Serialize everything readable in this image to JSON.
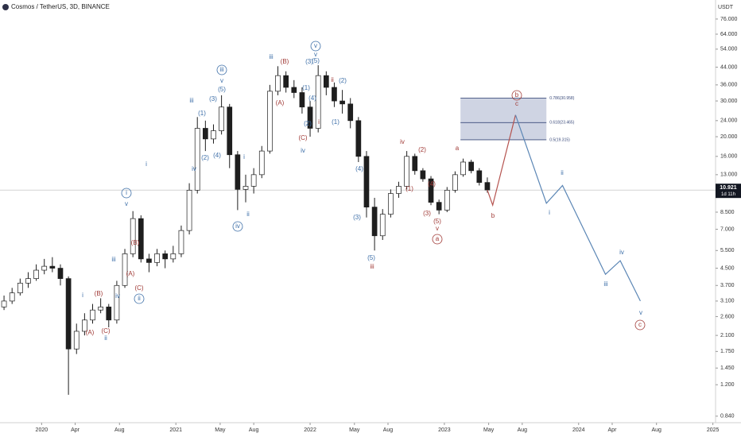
{
  "header": {
    "symbol": "Cosmos / TetherUS, 3D, BINANCE",
    "currency": "USDT",
    "countdown": "1d 11h"
  },
  "chart_data": {
    "type": "candlestick",
    "log": true,
    "up_color": "#ffffff",
    "down_color": "#1e1e1e",
    "outline": "#1e1e1e",
    "ylim": [
      0.78,
      94.3
    ],
    "xlim": [
      2019.69,
      2025.02
    ],
    "yticks": [
      {
        "value": 76,
        "label": "76.000"
      },
      {
        "value": 64,
        "label": "64.000"
      },
      {
        "value": 54,
        "label": "54.000"
      },
      {
        "value": 44,
        "label": "44.000"
      },
      {
        "value": 36,
        "label": "36.000"
      },
      {
        "value": 30,
        "label": "30.000"
      },
      {
        "value": 24,
        "label": "24.000"
      },
      {
        "value": 20,
        "label": "20.000"
      },
      {
        "value": 16,
        "label": "16.000"
      },
      {
        "value": 13,
        "label": "13.000"
      },
      {
        "value": 8.5,
        "label": "8.500"
      },
      {
        "value": 7,
        "label": "7.000"
      },
      {
        "value": 5.5,
        "label": "5.500"
      },
      {
        "value": 4.5,
        "label": "4.500"
      },
      {
        "value": 3.7,
        "label": "3.700"
      },
      {
        "value": 3.1,
        "label": "3.100"
      },
      {
        "value": 2.6,
        "label": "2.600"
      },
      {
        "value": 2.1,
        "label": "2.100"
      },
      {
        "value": 1.75,
        "label": "1.750"
      },
      {
        "value": 1.45,
        "label": "1.450"
      },
      {
        "value": 1.2,
        "label": "1.200"
      },
      {
        "value": 0.84,
        "label": "0.840"
      }
    ],
    "xticks": [
      2020,
      {
        "value": 2020.25,
        "label": "Apr"
      },
      {
        "value": 2020.58,
        "label": "Aug"
      },
      2021,
      {
        "value": 2021.33,
        "label": "May"
      },
      {
        "value": 2021.58,
        "label": "Aug"
      },
      2022,
      {
        "value": 2022.33,
        "label": "May"
      },
      {
        "value": 2022.58,
        "label": "Aug"
      },
      2023,
      {
        "value": 2023.33,
        "label": "May"
      },
      {
        "value": 2023.58,
        "label": "Aug"
      },
      2024,
      {
        "value": 2024.25,
        "label": "Apr"
      },
      {
        "value": 2024.58,
        "label": "Aug"
      },
      2025
    ],
    "x": [
      2019.72,
      2019.78,
      2019.84,
      2019.9,
      2019.96,
      2020.02,
      2020.08,
      2020.14,
      2020.2,
      2020.26,
      2020.32,
      2020.38,
      2020.44,
      2020.5,
      2020.56,
      2020.62,
      2020.68,
      2020.74,
      2020.8,
      2020.86,
      2020.92,
      2020.98,
      2021.04,
      2021.1,
      2021.16,
      2021.22,
      2021.28,
      2021.34,
      2021.4,
      2021.46,
      2021.52,
      2021.58,
      2021.64,
      2021.7,
      2021.76,
      2021.82,
      2021.88,
      2021.94,
      2022.0,
      2022.06,
      2022.12,
      2022.18,
      2022.24,
      2022.3,
      2022.36,
      2022.42,
      2022.48,
      2022.54,
      2022.6,
      2022.66,
      2022.72,
      2022.78,
      2022.84,
      2022.9,
      2022.96,
      2023.02,
      2023.08,
      2023.14,
      2023.2,
      2023.26,
      2023.32
    ],
    "open": [
      2.9,
      3.1,
      3.4,
      3.8,
      4.0,
      4.4,
      4.6,
      4.5,
      4.0,
      1.8,
      2.2,
      2.5,
      2.8,
      2.9,
      2.5,
      3.7,
      5.3,
      7.9,
      5.0,
      4.8,
      5.3,
      5.0,
      5.3,
      6.9,
      10.9,
      22,
      19.5,
      21.4,
      28,
      16.3,
      11,
      11.4,
      13,
      17,
      33.5,
      40,
      35,
      33,
      28,
      22,
      40,
      35,
      30,
      29,
      24,
      16,
      9,
      6.5,
      8.3,
      10.5,
      11.4,
      16,
      13.6,
      12.4,
      9.5,
      8.7,
      10.9,
      13,
      15,
      13.6,
      11.9
    ],
    "high": [
      3.3,
      3.6,
      4.0,
      4.3,
      4.7,
      5.0,
      5.1,
      4.7,
      4.1,
      2.4,
      2.7,
      3.0,
      3.2,
      3.0,
      3.9,
      5.6,
      8.6,
      8.2,
      5.3,
      5.6,
      5.5,
      5.8,
      7.3,
      11.8,
      25,
      24,
      23,
      32,
      29,
      17,
      13,
      14,
      18,
      36,
      44.5,
      42,
      38,
      35,
      30,
      45,
      42,
      37,
      34,
      31,
      25,
      17,
      10,
      8.8,
      11,
      12,
      17,
      16.5,
      14,
      12.8,
      9.8,
      11.3,
      13.5,
      15.6,
      15.4,
      14,
      12.6
    ],
    "low": [
      2.8,
      3.0,
      3.3,
      3.6,
      3.9,
      4.2,
      4.3,
      3.7,
      1.07,
      1.7,
      2.1,
      2.4,
      2.7,
      2.3,
      2.4,
      3.6,
      5.1,
      4.8,
      4.3,
      4.6,
      4.5,
      4.8,
      5.1,
      6.6,
      10.5,
      17,
      18.5,
      20.5,
      14,
      8.7,
      9.5,
      10.5,
      12.5,
      16.5,
      32,
      33,
      31,
      26,
      20,
      21,
      32,
      28,
      26,
      22,
      15,
      8,
      5.5,
      6.2,
      8,
      10,
      11,
      13,
      12,
      9.2,
      8.3,
      8.5,
      10.6,
      12.7,
      13.2,
      11.5,
      10.6
    ],
    "close": [
      3.1,
      3.4,
      3.8,
      4.0,
      4.4,
      4.6,
      4.5,
      4.0,
      1.8,
      2.2,
      2.5,
      2.8,
      2.9,
      2.5,
      3.7,
      5.3,
      7.9,
      5.0,
      4.8,
      5.3,
      5.0,
      5.3,
      6.9,
      10.9,
      22,
      19.5,
      21.4,
      28,
      16.3,
      11,
      11.4,
      13,
      17,
      33.5,
      40,
      35,
      33,
      28,
      22,
      40,
      35,
      30,
      29,
      24,
      16,
      9,
      6.5,
      8.3,
      10.5,
      11.4,
      16,
      13.6,
      12.4,
      9.5,
      8.7,
      10.9,
      13,
      15,
      13.6,
      11.9,
      10.921
    ],
    "fib": {
      "x": [
        2023.12,
        2023.76
      ],
      "levels": [
        {
          "value": 30.958,
          "label": "0.786(30.958)"
        },
        {
          "value": 23.465,
          "label": "0.618(23.465)"
        },
        {
          "value": 19.315,
          "label": "0.5(19.315)"
        }
      ],
      "fill": "#c3c9dc",
      "stroke": "#3a4a7a"
    },
    "projections": [
      {
        "color": "#b5534f",
        "x": [
          2023.32,
          2023.36,
          2023.53
        ],
        "values": [
          10.921,
          9.2,
          25.6
        ]
      },
      {
        "color": "#5b86b5",
        "x": [
          2023.53,
          2023.76,
          2023.88,
          2024.2,
          2024.31,
          2024.46
        ],
        "values": [
          25.6,
          9.4,
          11.5,
          4.2,
          4.9,
          3.1
        ]
      }
    ],
    "annotations": [
      {
        "text": "i",
        "color": "#3d6fa8",
        "circled": true
      },
      {
        "text": "v",
        "color": "#3d6fa8"
      },
      {
        "text": "ii",
        "color": "#3d6fa8",
        "circled": true
      },
      {
        "text": "iii",
        "color": "#3d6fa8"
      },
      {
        "text": "iv",
        "color": "#3d6fa8"
      },
      {
        "text": "i",
        "color": "#3d6fa8"
      },
      {
        "text": "iii",
        "color": "#3d6fa8"
      },
      {
        "text": "iv",
        "color": "#3d6fa8"
      },
      {
        "text": "iii",
        "color": "#3d6fa8",
        "circled": true
      },
      {
        "text": "v",
        "color": "#3d6fa8"
      },
      {
        "text": "(5)",
        "color": "#3d6fa8"
      },
      {
        "text": "(3)",
        "color": "#3d6fa8"
      },
      {
        "text": "(1)",
        "color": "#3d6fa8"
      },
      {
        "text": "(2)",
        "color": "#3d6fa8"
      },
      {
        "text": "(4)",
        "color": "#3d6fa8"
      },
      {
        "text": "iv",
        "color": "#3d6fa8",
        "circled": true
      },
      {
        "text": "ii",
        "color": "#3d6fa8"
      },
      {
        "text": "i",
        "color": "#3d6fa8"
      },
      {
        "text": "iii",
        "color": "#3d6fa8"
      },
      {
        "text": "v",
        "color": "#3d6fa8",
        "circled": true
      },
      {
        "text": "v",
        "color": "#3d6fa8"
      },
      {
        "text": "(5)",
        "color": "#3d6fa8"
      },
      {
        "text": "(3)",
        "color": "#3d6fa8"
      },
      {
        "text": "(1)",
        "color": "#3d6fa8"
      },
      {
        "text": "(4)",
        "color": "#3d6fa8"
      },
      {
        "text": "(2)",
        "color": "#3d6fa8"
      },
      {
        "text": "(1)",
        "color": "#3d6fa8"
      },
      {
        "text": "(2)",
        "color": "#3d6fa8"
      },
      {
        "text": "iv",
        "color": "#3d6fa8"
      },
      {
        "text": "(3)",
        "color": "#3d6fa8"
      },
      {
        "text": "(4)",
        "color": "#3d6fa8"
      },
      {
        "text": "(5)",
        "color": "#3d6fa8"
      },
      {
        "text": "i",
        "color": "#3d6fa8"
      },
      {
        "text": "ii",
        "color": "#3d6fa8"
      },
      {
        "text": "iii",
        "color": "#3d6fa8"
      },
      {
        "text": "iv",
        "color": "#3d6fa8"
      },
      {
        "text": "ii",
        "color": "#3d6fa8"
      },
      {
        "text": "i",
        "color": "#3d6fa8"
      },
      {
        "text": "v",
        "color": "#3d6fa8"
      },
      {
        "text": "(B)",
        "color": "#a03a36"
      },
      {
        "text": "(A)",
        "color": "#a03a36"
      },
      {
        "text": "(C)",
        "color": "#a03a36"
      },
      {
        "text": "ii",
        "color": "#a03a36"
      },
      {
        "text": "i",
        "color": "#a03a36"
      },
      {
        "text": "iii",
        "color": "#a03a36"
      },
      {
        "text": "iv",
        "color": "#a03a36"
      },
      {
        "text": "(2)",
        "color": "#a03a36"
      },
      {
        "text": "(1)",
        "color": "#a03a36"
      },
      {
        "text": "(4)",
        "color": "#a03a36"
      },
      {
        "text": "(3)",
        "color": "#a03a36"
      },
      {
        "text": "(5)",
        "color": "#a03a36"
      },
      {
        "text": "v",
        "color": "#a03a36"
      },
      {
        "text": "a",
        "color": "#a03a36",
        "circled": true
      },
      {
        "text": "a",
        "color": "#a03a36"
      },
      {
        "text": "b",
        "color": "#a03a36"
      },
      {
        "text": "b",
        "color": "#a03a36",
        "circled": true
      },
      {
        "text": "c",
        "color": "#a03a36"
      },
      {
        "text": "c",
        "color": "#a03a36",
        "circled": true
      },
      {
        "text": "(B)",
        "color": "#a03a36"
      },
      {
        "text": "(A)",
        "color": "#a03a36"
      },
      {
        "text": "(C)",
        "color": "#a03a36"
      },
      {
        "text": "(B)",
        "color": "#a03a36"
      },
      {
        "text": "(A)",
        "color": "#a03a36"
      },
      {
        "text": "(C)",
        "color": "#a03a36"
      }
    ]
  }
}
